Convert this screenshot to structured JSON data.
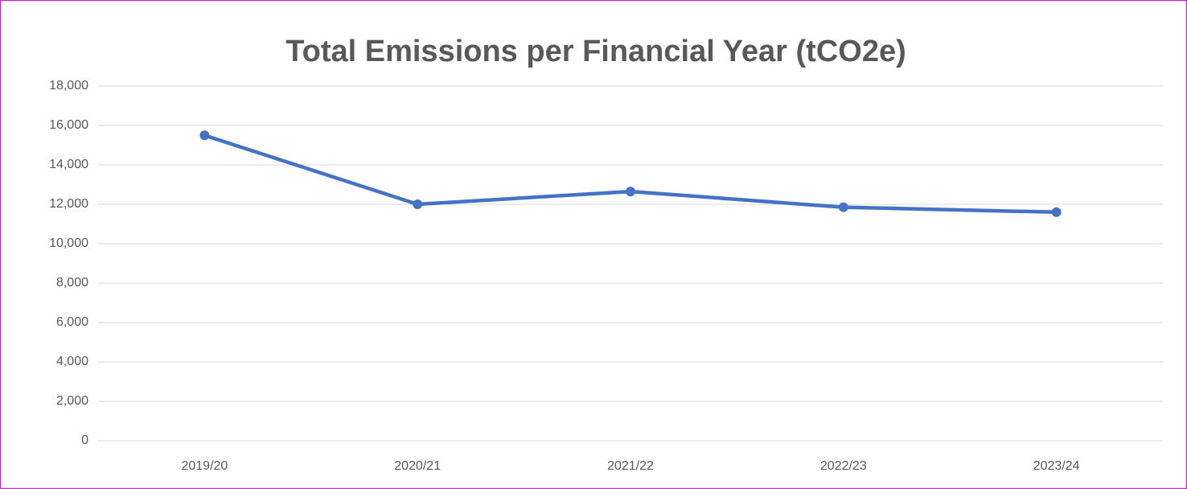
{
  "chart_data": {
    "type": "line",
    "title": "Total Emissions per Financial Year (tCO2e)",
    "categories": [
      "2019/20",
      "2020/21",
      "2021/22",
      "2022/23",
      "2023/24"
    ],
    "series": [
      {
        "name": "Total Emissions",
        "color": "#4472c4",
        "values": [
          15500,
          12000,
          12650,
          11850,
          11600
        ]
      }
    ],
    "ylim": [
      0,
      18000
    ],
    "yticks": [
      0,
      {
        "value": 2000,
        "label": "2,000"
      },
      {
        "value": 4000,
        "label": "4,000"
      },
      {
        "value": 6000,
        "label": "6,000"
      },
      {
        "value": 8000,
        "label": "8,000"
      },
      {
        "value": 10000,
        "label": "10,000"
      },
      {
        "value": 12000,
        "label": "12,000"
      },
      {
        "value": 14000,
        "label": "14,000"
      },
      {
        "value": 16000,
        "label": "16,000"
      },
      {
        "value": 18000,
        "label": "18,000"
      }
    ],
    "grid": true
  }
}
